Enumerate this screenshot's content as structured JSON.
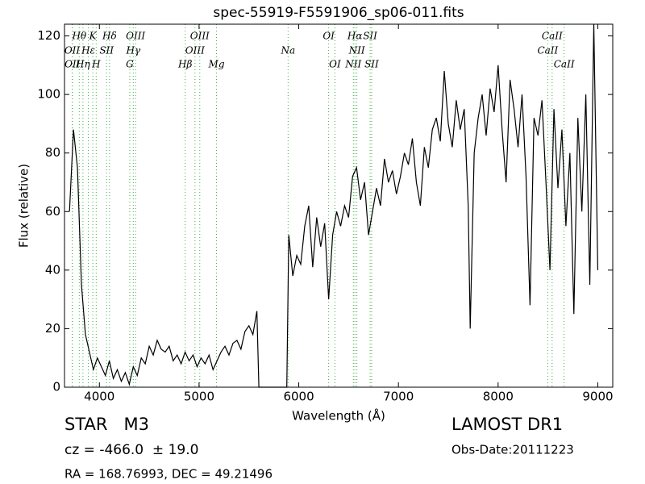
{
  "chart_data": {
    "type": "line",
    "title": "spec-55919-F5591906_sp06-011.fits",
    "x_label": "Wavelength (Å)",
    "y_label": "Flux (relative)",
    "object_class": "STAR   M3",
    "redshift": "cz = -466.0  ± 19.0",
    "coords": "RA = 168.76993, DEC = 49.21496",
    "survey": "LAMOST DR1",
    "obs_date": "Obs-Date:20111223",
    "xlim": [
      3650,
      9150
    ],
    "ylim": [
      0,
      124
    ],
    "xticks": [
      4000,
      5000,
      6000,
      7000,
      8000,
      9000
    ],
    "yticks": [
      0,
      20,
      40,
      60,
      80,
      100,
      120
    ],
    "color": "#000000",
    "line_marker_color": "#3cb043",
    "x": [
      3700,
      3740,
      3780,
      3820,
      3860,
      3900,
      3940,
      3980,
      4020,
      4060,
      4100,
      4140,
      4180,
      4220,
      4260,
      4300,
      4340,
      4380,
      4420,
      4460,
      4500,
      4540,
      4580,
      4620,
      4660,
      4700,
      4740,
      4780,
      4820,
      4860,
      4900,
      4940,
      4980,
      5020,
      5060,
      5100,
      5140,
      5180,
      5220,
      5260,
      5300,
      5340,
      5380,
      5420,
      5460,
      5500,
      5540,
      5580,
      5600,
      5640,
      5680,
      5720,
      5760,
      5800,
      5840,
      5880,
      5900,
      5940,
      5980,
      6020,
      6060,
      6100,
      6140,
      6180,
      6220,
      6260,
      6300,
      6340,
      6380,
      6420,
      6460,
      6500,
      6540,
      6580,
      6620,
      6660,
      6700,
      6740,
      6780,
      6820,
      6860,
      6900,
      6940,
      6980,
      7020,
      7060,
      7100,
      7140,
      7180,
      7220,
      7260,
      7300,
      7340,
      7380,
      7420,
      7460,
      7500,
      7540,
      7580,
      7620,
      7660,
      7700,
      7720,
      7760,
      7800,
      7840,
      7880,
      7920,
      7960,
      8000,
      8040,
      8080,
      8120,
      8160,
      8200,
      8240,
      8280,
      8320,
      8360,
      8400,
      8440,
      8480,
      8520,
      8560,
      8600,
      8640,
      8680,
      8720,
      8760,
      8800,
      8840,
      8880,
      8920,
      8960,
      9000
    ],
    "values": [
      60,
      88,
      75,
      35,
      18,
      12,
      6,
      10,
      7,
      4,
      9,
      3,
      6,
      2,
      5,
      1,
      7,
      4,
      10,
      8,
      14,
      11,
      16,
      13,
      12,
      14,
      9,
      11,
      8,
      12,
      9,
      11,
      7,
      10,
      8,
      11,
      6,
      9,
      12,
      14,
      11,
      15,
      16,
      13,
      19,
      21,
      18,
      26,
      0,
      0,
      0,
      0,
      0,
      0,
      0,
      0,
      52,
      38,
      45,
      42,
      55,
      62,
      41,
      58,
      48,
      56,
      30,
      52,
      60,
      55,
      62,
      58,
      72,
      75,
      64,
      70,
      52,
      60,
      68,
      62,
      78,
      70,
      74,
      66,
      72,
      80,
      76,
      85,
      70,
      62,
      82,
      75,
      88,
      92,
      84,
      108,
      90,
      82,
      98,
      88,
      95,
      62,
      20,
      80,
      92,
      100,
      86,
      102,
      94,
      110,
      88,
      70,
      105,
      95,
      82,
      100,
      72,
      28,
      92,
      86,
      98,
      70,
      40,
      95,
      68,
      88,
      55,
      80,
      25,
      92,
      60,
      100,
      35,
      124,
      40
    ],
    "spectral_lines": [
      {
        "wavelength": 3727,
        "label": "OII",
        "row": 1
      },
      {
        "wavelength": 3729,
        "label": "OII",
        "row": 2
      },
      {
        "wavelength": 3798,
        "label": "Hθ",
        "row": 0
      },
      {
        "wavelength": 3835,
        "label": "Hη",
        "row": 2
      },
      {
        "wavelength": 3889,
        "label": "Hε",
        "row": 1
      },
      {
        "wavelength": 3934,
        "label": "K",
        "row": 0
      },
      {
        "wavelength": 3968,
        "label": "H",
        "row": 2
      },
      {
        "wavelength": 4072,
        "label": "SII",
        "row": 1
      },
      {
        "wavelength": 4102,
        "label": "Hδ",
        "row": 0
      },
      {
        "wavelength": 4305,
        "label": "G",
        "row": 2
      },
      {
        "wavelength": 4340,
        "label": "Hγ",
        "row": 1
      },
      {
        "wavelength": 4363,
        "label": "OIII",
        "row": 0
      },
      {
        "wavelength": 4861,
        "label": "Hβ",
        "row": 2
      },
      {
        "wavelength": 4959,
        "label": "OIII",
        "row": 1
      },
      {
        "wavelength": 5007,
        "label": "OIII",
        "row": 0
      },
      {
        "wavelength": 5175,
        "label": "Mg",
        "row": 2
      },
      {
        "wavelength": 5893,
        "label": "Na",
        "row": 1
      },
      {
        "wavelength": 6300,
        "label": "OI",
        "row": 0
      },
      {
        "wavelength": 6363,
        "label": "OI",
        "row": 2
      },
      {
        "wavelength": 6548,
        "label": "NII",
        "row": 2
      },
      {
        "wavelength": 6563,
        "label": "Hα",
        "row": 0
      },
      {
        "wavelength": 6583,
        "label": "NII",
        "row": 1
      },
      {
        "wavelength": 6716,
        "label": "SII",
        "row": 0
      },
      {
        "wavelength": 6731,
        "label": "SII",
        "row": 2
      },
      {
        "wavelength": 8498,
        "label": "CaII",
        "row": 1
      },
      {
        "wavelength": 8542,
        "label": "CaII",
        "row": 0
      },
      {
        "wavelength": 8662,
        "label": "CaII",
        "row": 2
      }
    ]
  }
}
